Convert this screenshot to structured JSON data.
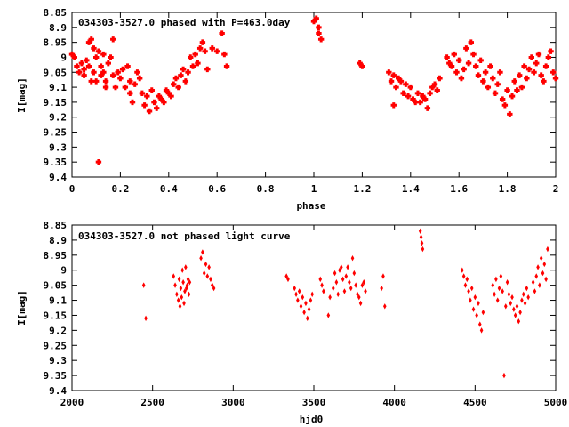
{
  "chart_data": [
    {
      "type": "scatter",
      "title": "034303-3527.0 phased with P=463.0day",
      "xlabel": "phase",
      "ylabel": "I[mag]",
      "xlim": [
        0,
        2
      ],
      "ylim": [
        8.85,
        9.4
      ],
      "y_inverted": true,
      "x_ticks": [
        "0",
        "0.2",
        "0.4",
        "0.6",
        "0.8",
        "1",
        "1.2",
        "1.4",
        "1.6",
        "1.8",
        "2"
      ],
      "y_ticks": [
        "8.85",
        "8.9",
        "8.95",
        "9",
        "9.05",
        "9.1",
        "9.15",
        "9.2",
        "9.25",
        "9.3",
        "9.35",
        "9.4"
      ],
      "marker": "cross",
      "color": "#ff0000",
      "points": [
        [
          0.0,
          8.99
        ],
        [
          0.01,
          9.0
        ],
        [
          0.02,
          9.03
        ],
        [
          0.03,
          9.05
        ],
        [
          0.04,
          9.02
        ],
        [
          0.05,
          9.04
        ],
        [
          0.05,
          9.06
        ],
        [
          0.06,
          9.01
        ],
        [
          0.07,
          9.03
        ],
        [
          0.07,
          8.95
        ],
        [
          0.08,
          8.94
        ],
        [
          0.08,
          9.08
        ],
        [
          0.09,
          8.97
        ],
        [
          0.09,
          9.05
        ],
        [
          0.1,
          9.0
        ],
        [
          0.1,
          9.08
        ],
        [
          0.11,
          8.98
        ],
        [
          0.11,
          9.35
        ],
        [
          0.12,
          9.03
        ],
        [
          0.12,
          9.06
        ],
        [
          0.13,
          9.05
        ],
        [
          0.13,
          8.99
        ],
        [
          0.14,
          9.08
        ],
        [
          0.14,
          9.1
        ],
        [
          0.15,
          9.02
        ],
        [
          0.16,
          9.0
        ],
        [
          0.17,
          8.94
        ],
        [
          0.17,
          9.06
        ],
        [
          0.18,
          9.1
        ],
        [
          0.19,
          9.05
        ],
        [
          0.2,
          9.07
        ],
        [
          0.21,
          9.04
        ],
        [
          0.22,
          9.1
        ],
        [
          0.23,
          9.03
        ],
        [
          0.24,
          9.08
        ],
        [
          0.24,
          9.12
        ],
        [
          0.25,
          9.15
        ],
        [
          0.26,
          9.09
        ],
        [
          0.27,
          9.05
        ],
        [
          0.28,
          9.07
        ],
        [
          0.29,
          9.12
        ],
        [
          0.3,
          9.16
        ],
        [
          0.31,
          9.13
        ],
        [
          0.32,
          9.18
        ],
        [
          0.33,
          9.11
        ],
        [
          0.34,
          9.15
        ],
        [
          0.35,
          9.17
        ],
        [
          0.36,
          9.13
        ],
        [
          0.37,
          9.14
        ],
        [
          0.38,
          9.15
        ],
        [
          0.39,
          9.11
        ],
        [
          0.4,
          9.12
        ],
        [
          0.41,
          9.13
        ],
        [
          0.42,
          9.09
        ],
        [
          0.43,
          9.07
        ],
        [
          0.44,
          9.1
        ],
        [
          0.45,
          9.06
        ],
        [
          0.46,
          9.04
        ],
        [
          0.47,
          9.08
        ],
        [
          0.48,
          9.05
        ],
        [
          0.49,
          9.0
        ],
        [
          0.5,
          9.03
        ],
        [
          0.51,
          8.99
        ],
        [
          0.52,
          9.02
        ],
        [
          0.53,
          8.97
        ],
        [
          0.54,
          8.95
        ],
        [
          0.55,
          8.98
        ],
        [
          0.56,
          9.04
        ],
        [
          0.58,
          8.97
        ],
        [
          0.6,
          8.98
        ],
        [
          0.62,
          8.92
        ],
        [
          0.63,
          8.99
        ],
        [
          0.64,
          9.03
        ],
        [
          1.0,
          8.88
        ],
        [
          1.01,
          8.87
        ],
        [
          1.02,
          8.9
        ],
        [
          1.02,
          8.92
        ],
        [
          1.03,
          8.94
        ],
        [
          1.19,
          9.02
        ],
        [
          1.2,
          9.03
        ],
        [
          1.31,
          9.05
        ],
        [
          1.32,
          9.08
        ],
        [
          1.33,
          9.06
        ],
        [
          1.33,
          9.16
        ],
        [
          1.34,
          9.1
        ],
        [
          1.35,
          9.07
        ],
        [
          1.36,
          9.08
        ],
        [
          1.37,
          9.12
        ],
        [
          1.38,
          9.09
        ],
        [
          1.39,
          9.13
        ],
        [
          1.4,
          9.1
        ],
        [
          1.41,
          9.14
        ],
        [
          1.42,
          9.15
        ],
        [
          1.43,
          9.12
        ],
        [
          1.44,
          9.15
        ],
        [
          1.45,
          9.13
        ],
        [
          1.46,
          9.14
        ],
        [
          1.47,
          9.17
        ],
        [
          1.48,
          9.12
        ],
        [
          1.49,
          9.1
        ],
        [
          1.5,
          9.09
        ],
        [
          1.51,
          9.11
        ],
        [
          1.52,
          9.07
        ],
        [
          1.55,
          9.0
        ],
        [
          1.56,
          9.02
        ],
        [
          1.57,
          9.03
        ],
        [
          1.58,
          8.99
        ],
        [
          1.59,
          9.05
        ],
        [
          1.6,
          9.01
        ],
        [
          1.61,
          9.07
        ],
        [
          1.62,
          9.04
        ],
        [
          1.63,
          8.97
        ],
        [
          1.64,
          9.02
        ],
        [
          1.65,
          8.95
        ],
        [
          1.66,
          8.99
        ],
        [
          1.67,
          9.03
        ],
        [
          1.68,
          9.06
        ],
        [
          1.69,
          9.01
        ],
        [
          1.7,
          9.08
        ],
        [
          1.71,
          9.05
        ],
        [
          1.72,
          9.1
        ],
        [
          1.73,
          9.03
        ],
        [
          1.74,
          9.07
        ],
        [
          1.75,
          9.12
        ],
        [
          1.76,
          9.09
        ],
        [
          1.77,
          9.05
        ],
        [
          1.78,
          9.14
        ],
        [
          1.79,
          9.16
        ],
        [
          1.8,
          9.11
        ],
        [
          1.81,
          9.19
        ],
        [
          1.82,
          9.13
        ],
        [
          1.83,
          9.08
        ],
        [
          1.84,
          9.11
        ],
        [
          1.85,
          9.06
        ],
        [
          1.86,
          9.1
        ],
        [
          1.87,
          9.03
        ],
        [
          1.88,
          9.07
        ],
        [
          1.89,
          9.04
        ],
        [
          1.9,
          9.0
        ],
        [
          1.91,
          9.05
        ],
        [
          1.92,
          9.02
        ],
        [
          1.93,
          8.99
        ],
        [
          1.94,
          9.06
        ],
        [
          1.95,
          9.08
        ],
        [
          1.96,
          9.03
        ],
        [
          1.97,
          9.0
        ],
        [
          1.98,
          8.98
        ],
        [
          1.99,
          9.05
        ],
        [
          2.0,
          9.07
        ]
      ]
    },
    {
      "type": "scatter",
      "title": "034303-3527.0 not phased light curve",
      "xlabel": "hjd0",
      "ylabel": "I[mag]",
      "xlim": [
        2000,
        5000
      ],
      "ylim": [
        8.85,
        9.4
      ],
      "y_inverted": true,
      "x_ticks": [
        "2000",
        "2500",
        "3000",
        "3500",
        "4000",
        "4500",
        "5000"
      ],
      "y_ticks": [
        "8.85",
        "8.9",
        "8.95",
        "9",
        "9.05",
        "9.1",
        "9.15",
        "9.2",
        "9.25",
        "9.3",
        "9.35",
        "9.4"
      ],
      "marker": "diamond",
      "color": "#ff0000",
      "points": [
        [
          2445,
          9.05
        ],
        [
          2458,
          9.16
        ],
        [
          2630,
          9.02
        ],
        [
          2640,
          9.05
        ],
        [
          2650,
          9.08
        ],
        [
          2660,
          9.1
        ],
        [
          2665,
          9.03
        ],
        [
          2670,
          9.12
        ],
        [
          2675,
          9.06
        ],
        [
          2680,
          9.09
        ],
        [
          2685,
          9.0
        ],
        [
          2690,
          9.04
        ],
        [
          2695,
          9.11
        ],
        [
          2700,
          9.07
        ],
        [
          2705,
          8.99
        ],
        [
          2710,
          9.06
        ],
        [
          2715,
          9.05
        ],
        [
          2720,
          9.03
        ],
        [
          2725,
          9.08
        ],
        [
          2730,
          9.04
        ],
        [
          2800,
          8.96
        ],
        [
          2810,
          8.94
        ],
        [
          2820,
          9.01
        ],
        [
          2830,
          8.98
        ],
        [
          2840,
          9.02
        ],
        [
          2850,
          8.99
        ],
        [
          2860,
          9.03
        ],
        [
          2870,
          9.05
        ],
        [
          2880,
          9.06
        ],
        [
          3330,
          9.02
        ],
        [
          3340,
          9.03
        ],
        [
          3380,
          9.06
        ],
        [
          3390,
          9.08
        ],
        [
          3400,
          9.1
        ],
        [
          3410,
          9.07
        ],
        [
          3420,
          9.12
        ],
        [
          3430,
          9.09
        ],
        [
          3440,
          9.14
        ],
        [
          3450,
          9.11
        ],
        [
          3460,
          9.16
        ],
        [
          3470,
          9.13
        ],
        [
          3480,
          9.1
        ],
        [
          3490,
          9.08
        ],
        [
          3540,
          9.03
        ],
        [
          3550,
          9.05
        ],
        [
          3560,
          9.07
        ],
        [
          3590,
          9.15
        ],
        [
          3600,
          9.09
        ],
        [
          3620,
          9.06
        ],
        [
          3630,
          9.01
        ],
        [
          3640,
          9.04
        ],
        [
          3650,
          9.08
        ],
        [
          3660,
          9.0
        ],
        [
          3670,
          8.99
        ],
        [
          3680,
          9.03
        ],
        [
          3690,
          9.07
        ],
        [
          3700,
          9.02
        ],
        [
          3710,
          8.99
        ],
        [
          3720,
          9.04
        ],
        [
          3730,
          9.06
        ],
        [
          3740,
          8.96
        ],
        [
          3750,
          9.01
        ],
        [
          3760,
          9.05
        ],
        [
          3770,
          9.08
        ],
        [
          3780,
          9.09
        ],
        [
          3790,
          9.11
        ],
        [
          3800,
          9.05
        ],
        [
          3810,
          9.04
        ],
        [
          3820,
          9.07
        ],
        [
          3920,
          9.06
        ],
        [
          3930,
          9.02
        ],
        [
          3940,
          9.12
        ],
        [
          4160,
          8.87
        ],
        [
          4165,
          8.89
        ],
        [
          4170,
          8.91
        ],
        [
          4175,
          8.93
        ],
        [
          4420,
          9.0
        ],
        [
          4430,
          9.02
        ],
        [
          4440,
          9.05
        ],
        [
          4450,
          9.03
        ],
        [
          4460,
          9.07
        ],
        [
          4470,
          9.1
        ],
        [
          4480,
          9.06
        ],
        [
          4490,
          9.13
        ],
        [
          4500,
          9.09
        ],
        [
          4510,
          9.15
        ],
        [
          4520,
          9.11
        ],
        [
          4530,
          9.18
        ],
        [
          4540,
          9.2
        ],
        [
          4550,
          9.14
        ],
        [
          4610,
          9.05
        ],
        [
          4620,
          9.08
        ],
        [
          4630,
          9.03
        ],
        [
          4640,
          9.1
        ],
        [
          4650,
          9.06
        ],
        [
          4660,
          9.02
        ],
        [
          4670,
          9.07
        ],
        [
          4680,
          9.35
        ],
        [
          4690,
          9.12
        ],
        [
          4700,
          9.04
        ],
        [
          4710,
          9.08
        ],
        [
          4720,
          9.11
        ],
        [
          4730,
          9.09
        ],
        [
          4740,
          9.13
        ],
        [
          4750,
          9.15
        ],
        [
          4760,
          9.12
        ],
        [
          4770,
          9.17
        ],
        [
          4780,
          9.14
        ],
        [
          4790,
          9.1
        ],
        [
          4800,
          9.08
        ],
        [
          4810,
          9.11
        ],
        [
          4820,
          9.06
        ],
        [
          4830,
          9.09
        ],
        [
          4860,
          9.04
        ],
        [
          4870,
          9.07
        ],
        [
          4880,
          9.02
        ],
        [
          4890,
          8.99
        ],
        [
          4900,
          9.05
        ],
        [
          4910,
          8.96
        ],
        [
          4920,
          9.01
        ],
        [
          4930,
          8.98
        ],
        [
          4940,
          9.03
        ],
        [
          4950,
          8.93
        ]
      ]
    }
  ]
}
